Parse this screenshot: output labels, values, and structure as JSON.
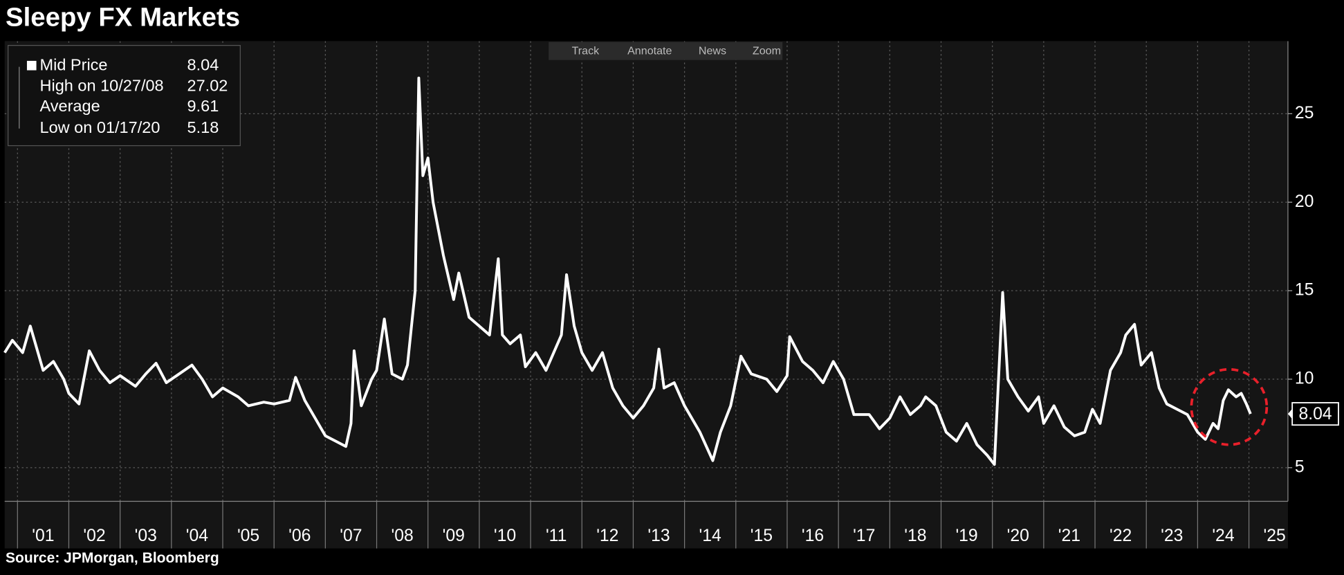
{
  "chart_data": {
    "type": "line",
    "title": "Sleepy FX Markets",
    "source": "Source: JPMorgan, Bloomberg",
    "toolbar": [
      "Track",
      "Annotate",
      "News",
      "Zoom"
    ],
    "legend_stats": [
      {
        "name": "High on 10/27/08",
        "value": 27.02
      },
      {
        "name": "Average",
        "value": 9.61
      },
      {
        "name": "Low on 01/17/20",
        "value": 5.18
      }
    ],
    "x": [
      2000.75,
      2000.9,
      2001.1,
      2001.25,
      2001.5,
      2001.7,
      2001.9,
      2002.0,
      2002.2,
      2002.4,
      2002.6,
      2002.8,
      2003.0,
      2003.3,
      2003.5,
      2003.7,
      2003.9,
      2004.1,
      2004.4,
      2004.6,
      2004.8,
      2005.0,
      2005.3,
      2005.5,
      2005.8,
      2006.0,
      2006.3,
      2006.42,
      2006.6,
      2006.8,
      2007.0,
      2007.2,
      2007.4,
      2007.5,
      2007.56,
      2007.7,
      2007.9,
      2008.0,
      2008.15,
      2008.3,
      2008.5,
      2008.6,
      2008.75,
      2008.82,
      2008.9,
      2009.0,
      2009.1,
      2009.3,
      2009.5,
      2009.6,
      2009.8,
      2010.0,
      2010.2,
      2010.37,
      2010.45,
      2010.6,
      2010.8,
      2010.9,
      2011.1,
      2011.3,
      2011.6,
      2011.7,
      2011.85,
      2012.0,
      2012.2,
      2012.4,
      2012.6,
      2012.8,
      2013.0,
      2013.2,
      2013.4,
      2013.5,
      2013.6,
      2013.8,
      2014.0,
      2014.3,
      2014.55,
      2014.7,
      2014.9,
      2015.1,
      2015.3,
      2015.6,
      2015.8,
      2016.0,
      2016.05,
      2016.3,
      2016.5,
      2016.7,
      2016.9,
      2017.1,
      2017.3,
      2017.6,
      2017.8,
      2018.0,
      2018.2,
      2018.4,
      2018.6,
      2018.7,
      2018.9,
      2019.1,
      2019.3,
      2019.5,
      2019.7,
      2019.9,
      2020.04,
      2020.2,
      2020.3,
      2020.5,
      2020.7,
      2020.9,
      2021.0,
      2021.2,
      2021.4,
      2021.6,
      2021.8,
      2021.95,
      2022.1,
      2022.3,
      2022.5,
      2022.6,
      2022.77,
      2022.9,
      2023.1,
      2023.25,
      2023.4,
      2023.6,
      2023.8,
      2024.0,
      2024.15,
      2024.3,
      2024.4,
      2024.5,
      2024.6,
      2024.75,
      2024.85,
      2024.95,
      2025.03
    ],
    "ylim": [
      3.1,
      29.1
    ],
    "yticks": [
      5,
      10,
      15,
      20,
      25
    ],
    "xlim": [
      2000.75,
      2025.76
    ],
    "xticks": [
      {
        "value": 2001,
        "label": "'01"
      },
      {
        "value": 2002,
        "label": "'02"
      },
      {
        "value": 2003,
        "label": "'03"
      },
      {
        "value": 2004,
        "label": "'04"
      },
      {
        "value": 2005,
        "label": "'05"
      },
      {
        "value": 2006,
        "label": "'06"
      },
      {
        "value": 2007,
        "label": "'07"
      },
      {
        "value": 2008,
        "label": "'08"
      },
      {
        "value": 2009,
        "label": "'09"
      },
      {
        "value": 2010,
        "label": "'10"
      },
      {
        "value": 2011,
        "label": "'11"
      },
      {
        "value": 2012,
        "label": "'12"
      },
      {
        "value": 2013,
        "label": "'13"
      },
      {
        "value": 2014,
        "label": "'14"
      },
      {
        "value": 2015,
        "label": "'15"
      },
      {
        "value": 2016,
        "label": "'16"
      },
      {
        "value": 2017,
        "label": "'17"
      },
      {
        "value": 2018,
        "label": "'18"
      },
      {
        "value": 2019,
        "label": "'19"
      },
      {
        "value": 2020,
        "label": "'20"
      },
      {
        "value": 2021,
        "label": "'21"
      },
      {
        "value": 2022,
        "label": "'22"
      },
      {
        "value": 2023,
        "label": "'23"
      },
      {
        "value": 2024,
        "label": "'24"
      },
      {
        "value": 2025,
        "label": "'25"
      }
    ],
    "grid": true,
    "series": [
      {
        "name": "Mid Price",
        "color": "#ffffff",
        "values": [
          11.5,
          12.2,
          11.5,
          13.0,
          10.5,
          11.0,
          10.0,
          9.2,
          8.6,
          11.6,
          10.5,
          9.8,
          10.2,
          9.6,
          10.3,
          10.9,
          9.8,
          10.2,
          10.8,
          10.0,
          9.0,
          9.5,
          9.0,
          8.5,
          8.7,
          8.6,
          8.8,
          10.1,
          8.8,
          7.8,
          6.8,
          6.5,
          6.2,
          7.5,
          11.6,
          8.5,
          10.0,
          10.5,
          13.4,
          10.3,
          10.0,
          10.8,
          15.0,
          27.02,
          21.5,
          22.5,
          20.0,
          17.0,
          14.5,
          16.0,
          13.5,
          13.0,
          12.5,
          16.8,
          12.5,
          12.0,
          12.5,
          10.7,
          11.5,
          10.5,
          12.5,
          15.9,
          13.0,
          11.5,
          10.5,
          11.5,
          9.5,
          8.5,
          7.8,
          8.5,
          9.5,
          11.7,
          9.5,
          9.8,
          8.5,
          7.0,
          5.4,
          7.0,
          8.5,
          11.3,
          10.3,
          10.0,
          9.3,
          10.2,
          12.4,
          11.0,
          10.5,
          9.8,
          11.0,
          10.0,
          8.0,
          8.0,
          7.2,
          7.8,
          9.0,
          8.0,
          8.5,
          9.0,
          8.5,
          7.0,
          6.5,
          7.5,
          6.3,
          5.7,
          5.18,
          14.9,
          10.0,
          9.0,
          8.2,
          9.0,
          7.5,
          8.5,
          7.3,
          6.8,
          7.0,
          8.3,
          7.5,
          10.5,
          11.5,
          12.5,
          13.1,
          10.8,
          11.5,
          9.5,
          8.6,
          8.3,
          8.0,
          7.0,
          6.6,
          7.5,
          7.2,
          8.8,
          9.4,
          9.0,
          9.2,
          8.6,
          8.04
        ]
      }
    ],
    "annotation_color": "#e8202a"
  }
}
